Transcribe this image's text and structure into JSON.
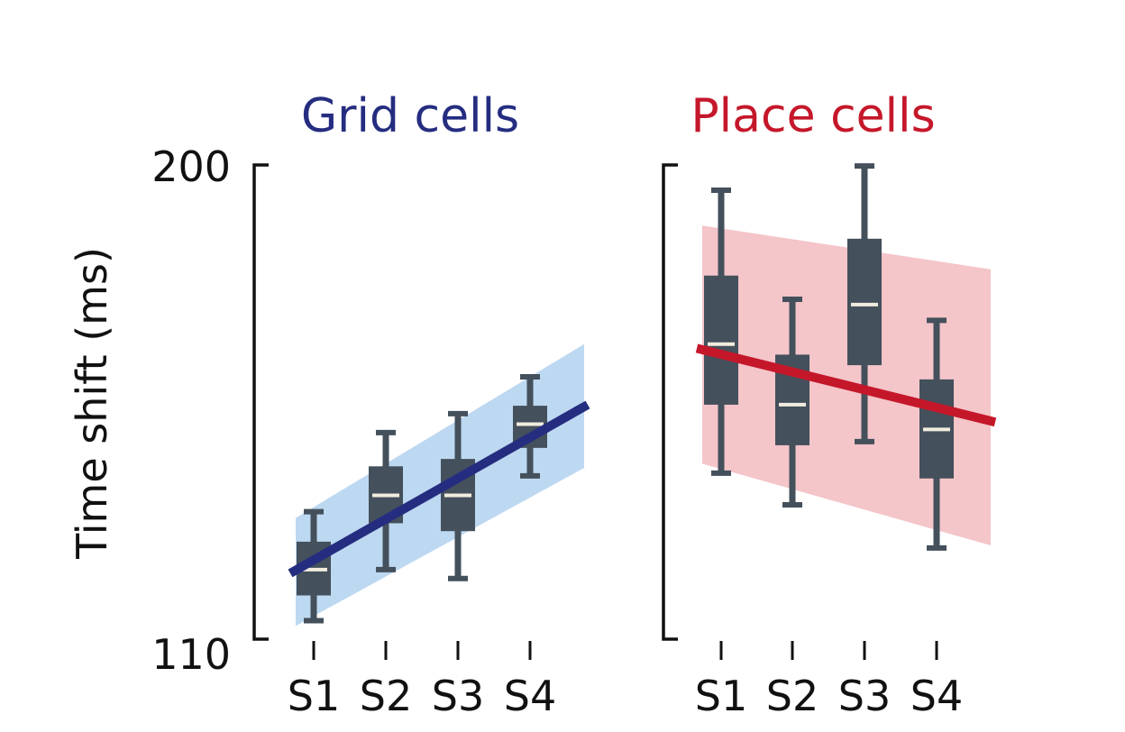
{
  "chart_data": [
    {
      "type": "box",
      "title": "Grid cells",
      "ylabel": "Time shift (ms)",
      "ylim": [
        110,
        200
      ],
      "yticks": [
        "110",
        "200"
      ],
      "categories": [
        "S1",
        "S2",
        "S3",
        "S4"
      ],
      "boxes": [
        {
          "whisker_low": 113.5,
          "q1": 118.3,
          "median": 123.2,
          "q3": 128.5,
          "whisker_high": 134.2
        },
        {
          "whisker_low": 123.2,
          "q1": 132.0,
          "median": 137.3,
          "q3": 142.8,
          "whisker_high": 149.2
        },
        {
          "whisker_low": 121.5,
          "q1": 130.5,
          "median": 137.3,
          "q3": 144.2,
          "whisker_high": 152.8
        },
        {
          "whisker_low": 141.0,
          "q1": 146.3,
          "median": 150.8,
          "q3": 154.3,
          "whisker_high": 159.8
        }
      ],
      "trend_line": {
        "start": 122.5,
        "end": 154.5
      },
      "confidence_band": {
        "start_low": 112.5,
        "start_high": 133.0,
        "end_low": 142.5,
        "end_high": 166.0
      },
      "colors": {
        "title": "#252d80",
        "line": "#252d80",
        "band": "#bdd8f1",
        "box": "#44505b",
        "median": "#f2ecdf"
      }
    },
    {
      "type": "box",
      "title": "Place cells",
      "ylim": [
        110,
        200
      ],
      "categories": [
        "S1",
        "S2",
        "S3",
        "S4"
      ],
      "boxes": [
        {
          "whisker_low": 141.5,
          "q1": 154.5,
          "median": 166.0,
          "q3": 179.0,
          "whisker_high": 195.2
        },
        {
          "whisker_low": 135.5,
          "q1": 146.8,
          "median": 154.5,
          "q3": 164.0,
          "whisker_high": 174.5
        },
        {
          "whisker_low": 147.5,
          "q1": 162.0,
          "median": 173.5,
          "q3": 186.0,
          "whisker_high": 199.8
        },
        {
          "whisker_low": 127.3,
          "q1": 140.5,
          "median": 149.8,
          "q3": 159.3,
          "whisker_high": 170.5
        }
      ],
      "trend_line": {
        "start": 165.2,
        "end": 151.2
      },
      "confidence_band": {
        "start_low": 143.3,
        "start_high": 188.5,
        "end_low": 127.8,
        "end_high": 180.2
      },
      "colors": {
        "title": "#c5172a",
        "line": "#c5172a",
        "band": "#f4c5c9",
        "box": "#44505b",
        "median": "#f2ecdf"
      }
    }
  ]
}
